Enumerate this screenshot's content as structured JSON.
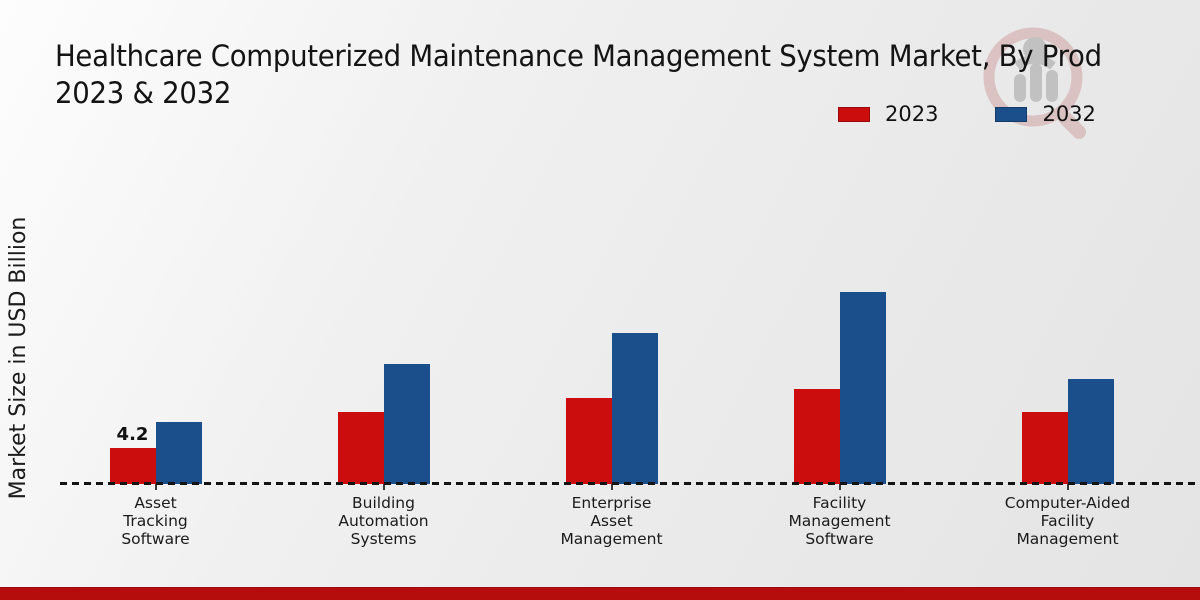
{
  "title": {
    "line1": "Healthcare Computerized Maintenance Management System Market, By Prod",
    "line2": "2023 & 2032"
  },
  "y_axis_label": "Market Size in USD Billion",
  "legend": {
    "items": [
      {
        "label": "2023",
        "color": "#cc0d0d"
      },
      {
        "label": "2032",
        "color": "#1a4f8b"
      }
    ]
  },
  "colors": {
    "series_2023": "#cc0d0d",
    "series_2032": "#1a4f8b",
    "footer_strip": "#b50c0c",
    "baseline": "#141414"
  },
  "chart_data": {
    "type": "bar",
    "categories": [
      "Asset Tracking Software",
      "Building Automation Systems",
      "Enterprise Asset Management",
      "Facility Management Software",
      "Computer-Aided Facility Management"
    ],
    "category_lines": [
      [
        "Asset",
        "Tracking",
        "Software"
      ],
      [
        "Building",
        "Automation",
        "Systems"
      ],
      [
        "Enterprise",
        "Asset",
        "Management"
      ],
      [
        "Facility",
        "Management",
        "Software"
      ],
      [
        "Computer-Aided",
        "Facility",
        "Management"
      ]
    ],
    "series": [
      {
        "name": "2023",
        "color": "#cc0d0d",
        "values": [
          4.2,
          8.4,
          10.0,
          11.1,
          8.4
        ]
      },
      {
        "name": "2032",
        "color": "#1a4f8b",
        "values": [
          7.2,
          14.0,
          17.6,
          22.4,
          12.3
        ]
      }
    ],
    "annotations": [
      {
        "category_index": 0,
        "series_index": 0,
        "text": "4.2"
      }
    ],
    "title": "Healthcare Computerized Maintenance Management System Market, By Prod 2023 & 2032",
    "xlabel": "",
    "ylabel": "Market Size in USD Billion",
    "ylim": [
      0,
      25
    ],
    "grid": false,
    "legend_position": "top-right",
    "baseline_style": "dashed"
  }
}
